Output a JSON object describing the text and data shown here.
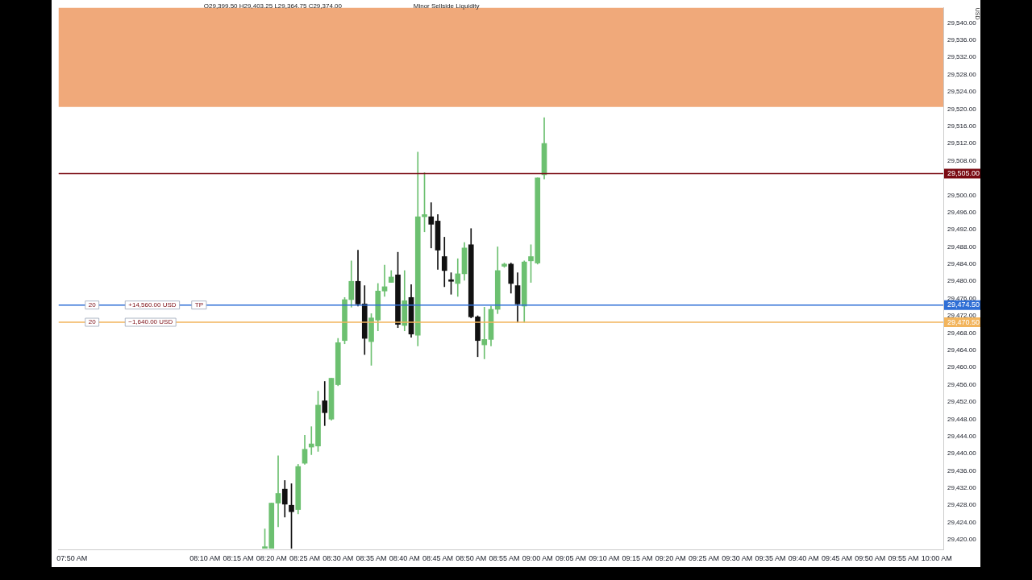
{
  "chart_data": {
    "type": "candlestick",
    "x": [
      "--06-08T08:19",
      "--06-08T08:20",
      "--06-08T08:21",
      "--06-08T08:22",
      "--06-08T08:23",
      "--06-08T08:24",
      "--06-08T08:25",
      "--06-08T08:26",
      "--06-08T08:27",
      "--06-08T08:28",
      "--06-08T08:29",
      "--06-08T08:30",
      "--06-08T08:31",
      "--06-08T08:32",
      "--06-08T08:33",
      "--06-08T08:34",
      "--06-08T08:35",
      "--06-08T08:36",
      "--06-08T08:37",
      "--06-08T08:38",
      "--06-08T08:39",
      "--06-08T08:40",
      "--06-08T08:41",
      "--06-08T08:42",
      "--06-08T08:43",
      "--06-08T08:44",
      "--06-08T08:45",
      "--06-08T08:46",
      "--06-08T08:47",
      "--06-08T08:48",
      "--06-08T08:49",
      "--06-08T08:50",
      "--06-08T08:51",
      "--06-08T08:52",
      "--06-08T08:53",
      "--06-08T08:54",
      "--06-08T08:55",
      "--06-08T08:56",
      "--06-08T08:57",
      "--06-08T08:58",
      "--06-08T08:59",
      "--06-08T09:00",
      "--06-08T09:01"
    ],
    "ohlc": [
      [
        29418,
        29422.5,
        29418,
        29418.25
      ],
      [
        29418,
        29428.5,
        29418,
        29428.5
      ],
      [
        29428.5,
        29439.5,
        29423,
        29430.75
      ],
      [
        29431.75,
        29433.75,
        29425.25,
        29428.25
      ],
      [
        29428,
        29433,
        29418,
        29426.5
      ],
      [
        29427,
        29437.5,
        29426,
        29437
      ],
      [
        29437.75,
        29444.25,
        29437.5,
        29441
      ],
      [
        29441.5,
        29446.25,
        29439.75,
        29442.25
      ],
      [
        29441.75,
        29454.5,
        29440.5,
        29451.25
      ],
      [
        29452.25,
        29456.75,
        29446.5,
        29449.5
      ],
      [
        29448,
        29457.5,
        29447.75,
        29457.5
      ],
      [
        29456,
        29466.75,
        29455.75,
        29465.75
      ],
      [
        29466.25,
        29476.25,
        29465.5,
        29475.75
      ],
      [
        29475.75,
        29484.75,
        29474,
        29480
      ],
      [
        29480,
        29487.25,
        29474.25,
        29474.75
      ],
      [
        29474.75,
        29479,
        29463,
        29466.75
      ],
      [
        29466,
        29472.5,
        29460.5,
        29471.5
      ],
      [
        29471,
        29479.5,
        29468.5,
        29477.75
      ],
      [
        29477.75,
        29483.75,
        29476.5,
        29478.75
      ],
      [
        29479.75,
        29482.5,
        29479.75,
        29481
      ],
      [
        29481.5,
        29486.75,
        29469.25,
        29470
      ],
      [
        29469.75,
        29482.5,
        29468.5,
        29475.5
      ],
      [
        29476.25,
        29479.25,
        29467,
        29467.75
      ],
      [
        29467.5,
        29510,
        29465,
        29495
      ],
      [
        29495,
        29505.25,
        29491.5,
        29495.5
      ],
      [
        29495,
        29498.25,
        29487.75,
        29493.25
      ],
      [
        29494,
        29495.5,
        29482.75,
        29487.25
      ],
      [
        29485.75,
        29490.25,
        29478.75,
        29482.5
      ],
      [
        29480,
        29482,
        29477,
        29480
      ],
      [
        29479.5,
        29485.25,
        29476.5,
        29481.75
      ],
      [
        29481.75,
        29489,
        29480.25,
        29487.75
      ],
      [
        29488.5,
        29492.25,
        29471.5,
        29471.75
      ],
      [
        29471.75,
        29472,
        29462.5,
        29466.25
      ],
      [
        29465.25,
        29474,
        29462,
        29466.5
      ],
      [
        29466.5,
        29474.25,
        29465,
        29473.5
      ],
      [
        29473.5,
        29488,
        29472.5,
        29482.5
      ],
      [
        29483.5,
        29484.25,
        29483.25,
        29484
      ],
      [
        29484,
        29484.25,
        29477.25,
        29479.5
      ],
      [
        29479,
        29482,
        29470.5,
        29474.75
      ],
      [
        29474.25,
        29484.75,
        29470.5,
        29484.5
      ],
      [
        29484.75,
        29488.5,
        29479.75,
        29485.75
      ],
      [
        29484.25,
        29504,
        29484,
        29504
      ],
      [
        29504.75,
        29518,
        29503.75,
        29512
      ]
    ],
    "colors": [
      "#6cc070",
      "#6cc070",
      "#6cc070",
      "#111111",
      "#111111",
      "#6cc070",
      "#6cc070",
      "#6cc070",
      "#6cc070",
      "#111111",
      "#6cc070",
      "#6cc070",
      "#6cc070",
      "#6cc070",
      "#111111",
      "#111111",
      "#6cc070",
      "#6cc070",
      "#6cc070",
      "#6cc070",
      "#111111",
      "#6cc070",
      "#111111",
      "#6cc070",
      "#6cc070",
      "#111111",
      "#111111",
      "#111111",
      "#111111",
      "#6cc070",
      "#6cc070",
      "#111111",
      "#111111",
      "#6cc070",
      "#6cc070",
      "#6cc070",
      "#6cc070",
      "#111111",
      "#111111",
      "#6cc070",
      "#6cc070",
      "#6cc070",
      "#6cc070"
    ],
    "xlim": [
      "--06-08T07:48",
      "--06-08T10:01"
    ],
    "xticks": [
      {
        "value": "--06-08T07:50",
        "label": "07:50 AM"
      },
      {
        "value": "--06-08T08:10",
        "label": "08:10 AM"
      },
      {
        "value": "--06-08T08:15",
        "label": "08:15 AM"
      },
      {
        "value": "--06-08T08:20",
        "label": "08:20 AM"
      },
      {
        "value": "--06-08T08:25",
        "label": "08:25 AM"
      },
      {
        "value": "--06-08T08:30",
        "label": "08:30 AM"
      },
      {
        "value": "--06-08T08:35",
        "label": "08:35 AM"
      },
      {
        "value": "--06-08T08:40",
        "label": "08:40 AM"
      },
      {
        "value": "--06-08T08:45",
        "label": "08:45 AM"
      },
      {
        "value": "--06-08T08:50",
        "label": "08:50 AM"
      },
      {
        "value": "--06-08T08:55",
        "label": "08:55 AM"
      },
      {
        "value": "--06-08T09:00",
        "label": "09:00 AM"
      },
      {
        "value": "--06-08T09:05",
        "label": "09:05 AM"
      },
      {
        "value": "--06-08T09:10",
        "label": "09:10 AM"
      },
      {
        "value": "--06-08T09:15",
        "label": "09:15 AM"
      },
      {
        "value": "--06-08T09:20",
        "label": "09:20 AM"
      },
      {
        "value": "--06-08T09:25",
        "label": "09:25 AM"
      },
      {
        "value": "--06-08T09:30",
        "label": "09:30 AM"
      },
      {
        "value": "--06-08T09:35",
        "label": "09:35 AM"
      },
      {
        "value": "--06-08T09:40",
        "label": "09:40 AM"
      },
      {
        "value": "--06-08T09:45",
        "label": "09:45 AM"
      },
      {
        "value": "--06-08T09:50",
        "label": "09:50 AM"
      },
      {
        "value": "--06-08T09:55",
        "label": "09:55 AM"
      },
      {
        "value": "--06-08T10:00",
        "label": "10:00 AM"
      }
    ],
    "ylim": [
      29417.75,
      29543.5
    ],
    "yticks": [
      {
        "value": 29420,
        "label": "29,420.00"
      },
      {
        "value": 29424,
        "label": "29,424.00"
      },
      {
        "value": 29428,
        "label": "29,428.00"
      },
      {
        "value": 29432,
        "label": "29,432.00"
      },
      {
        "value": 29436,
        "label": "29,436.00"
      },
      {
        "value": 29440,
        "label": "29,440.00"
      },
      {
        "value": 29444,
        "label": "29,444.00"
      },
      {
        "value": 29448,
        "label": "29,448.00"
      },
      {
        "value": 29452,
        "label": "29,452.00"
      },
      {
        "value": 29456,
        "label": "29,456.00"
      },
      {
        "value": 29460,
        "label": "29,460.00"
      },
      {
        "value": 29464,
        "label": "29,464.00"
      },
      {
        "value": 29468,
        "label": "29,468.00"
      },
      {
        "value": 29472,
        "label": "29,472.00"
      },
      {
        "value": 29476,
        "label": "29,476.00"
      },
      {
        "value": 29480,
        "label": "29,480.00"
      },
      {
        "value": 29484,
        "label": "29,484.00"
      },
      {
        "value": 29488,
        "label": "29,488.00"
      },
      {
        "value": 29492,
        "label": "29,492.00"
      },
      {
        "value": 29496,
        "label": "29,496.00"
      },
      {
        "value": 29500,
        "label": "29,500.00"
      },
      {
        "value": 29508,
        "label": "29,508.00"
      },
      {
        "value": 29512,
        "label": "29,512.00"
      },
      {
        "value": 29516,
        "label": "29,516.00"
      },
      {
        "value": 29520,
        "label": "29,520.00"
      },
      {
        "value": 29524,
        "label": "29,524.00"
      },
      {
        "value": 29528,
        "label": "29,528.00"
      },
      {
        "value": 29532,
        "label": "29,532.00"
      },
      {
        "value": 29536,
        "label": "29,536.00"
      },
      {
        "value": 29540,
        "label": "29,540.00"
      }
    ],
    "ylabel": "USD",
    "ref_lines": [
      {
        "axis": "y",
        "value": 29505,
        "label": "29,505.00",
        "color": "#7a0a12"
      },
      {
        "axis": "y",
        "value": 29474.5,
        "label": "29,474.50",
        "color": "#2f6fd6"
      },
      {
        "axis": "y",
        "value": 29470.5,
        "label": "29,470.50",
        "color": "#f2b45c"
      }
    ],
    "bands": [
      {
        "axis": "y",
        "from": 29520.5,
        "to": 29543.5,
        "color": "#f0a97a"
      }
    ],
    "annotations": [
      "O29,399.50 H29,403.25 L29,364.75 C29,374.00",
      {
        "text": "20",
        "x": "--06-08T07:52",
        "y": 29474.5
      },
      {
        "text": "+14,560.00 USD",
        "x": "--06-08T07:58",
        "y": 29474.5
      },
      {
        "text": "TP",
        "x": "--06-08T08:08",
        "y": 29474.5
      },
      {
        "text": "20",
        "x": "--06-08T07:52",
        "y": 29470.5
      },
      {
        "text": "−1,640.00 USD",
        "x": "--06-08T07:58",
        "y": 29470.5
      },
      "Minor Sellside Liquidity"
    ],
    "grid": false,
    "legend": false
  }
}
